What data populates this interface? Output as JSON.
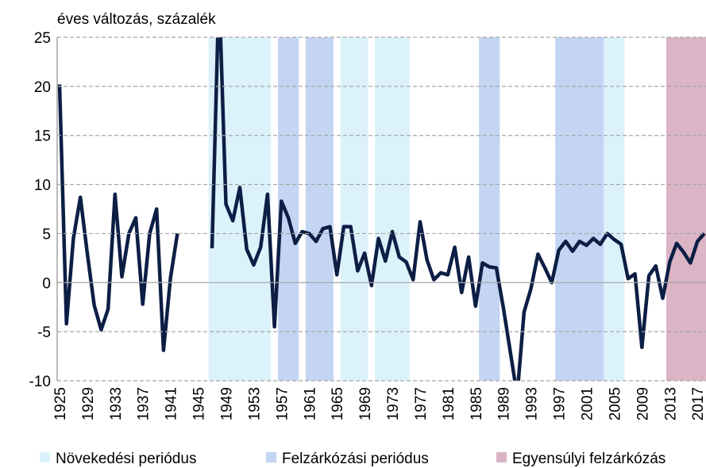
{
  "chart_data": {
    "type": "line",
    "y_label": "éves változás, százalék",
    "x": [
      1925,
      1926,
      1927,
      1928,
      1929,
      1930,
      1931,
      1932,
      1933,
      1934,
      1935,
      1936,
      1937,
      1938,
      1939,
      1940,
      1941,
      1942,
      1943,
      1944,
      1945,
      1946,
      1947,
      1948,
      1949,
      1950,
      1951,
      1952,
      1953,
      1954,
      1955,
      1956,
      1957,
      1958,
      1959,
      1960,
      1961,
      1962,
      1963,
      1964,
      1965,
      1966,
      1967,
      1968,
      1969,
      1970,
      1971,
      1972,
      1973,
      1974,
      1975,
      1976,
      1977,
      1978,
      1979,
      1980,
      1981,
      1982,
      1983,
      1984,
      1985,
      1986,
      1987,
      1988,
      1989,
      1990,
      1991,
      1992,
      1993,
      1994,
      1995,
      1996,
      1997,
      1998,
      1999,
      2000,
      2001,
      2002,
      2003,
      2004,
      2005,
      2006,
      2007,
      2008,
      2009,
      2010,
      2011,
      2012,
      2013,
      2014,
      2015,
      2016,
      2017,
      2018
    ],
    "series": [
      {
        "name": "GDP",
        "color": "#0d1e45",
        "values": [
          20.2,
          -4.2,
          4.5,
          8.7,
          3,
          -2.3,
          -4.8,
          -2.7,
          9,
          0.6,
          5,
          6.6,
          -2.2,
          5,
          7.5,
          -6.9,
          0.5,
          5,
          null,
          null,
          null,
          null,
          3.5,
          30,
          8,
          6.3,
          9.7,
          3.4,
          1.8,
          3.6,
          9,
          -4.5,
          8.3,
          6.6,
          4,
          5.2,
          5,
          4.2,
          5.5,
          5.7,
          0.8,
          5.7,
          5.7,
          1.2,
          3,
          -0.3,
          4.5,
          2.2,
          5.2,
          2.6,
          2.1,
          0.3,
          6.2,
          2.3,
          0.3,
          1,
          0.8,
          3.6,
          -1,
          2.6,
          -2.4,
          2,
          1.6,
          1.5,
          -2.5,
          -7,
          -11.5,
          -3,
          -0.6,
          2.9,
          1.5,
          0,
          3.3,
          4.2,
          3.2,
          4.2,
          3.8,
          4.5,
          3.9,
          5,
          4.4,
          3.9,
          0.4,
          0.9,
          -6.6,
          0.7,
          1.7,
          -1.6,
          2.1,
          4,
          3.1,
          2,
          4.2,
          5
        ]
      }
    ],
    "periods": [
      {
        "name": "Növekedési periódus",
        "color": "#dcf2fb",
        "ranges": [
          [
            1947,
            1955
          ],
          [
            1966,
            1969
          ],
          [
            1971,
            1975
          ],
          [
            2004,
            2006
          ]
        ]
      },
      {
        "name": "Felzárkózási periódus",
        "color": "#c3d5f3",
        "ranges": [
          [
            1957,
            1959
          ],
          [
            1961,
            1964
          ],
          [
            1986,
            1988
          ],
          [
            1997,
            2003
          ]
        ]
      },
      {
        "name": "Egyensúlyi felzárkózás",
        "color": "#dbb4c6",
        "ranges": [
          [
            2013,
            2018
          ]
        ]
      }
    ],
    "xlim": [
      1924.66,
      2018.24
    ],
    "xticks": [
      1925,
      1929,
      1933,
      1937,
      1941,
      1945,
      1949,
      1953,
      1957,
      1961,
      1965,
      1969,
      1973,
      1977,
      1981,
      1985,
      1989,
      1993,
      1997,
      2001,
      2005,
      2009,
      2013,
      2017
    ],
    "ylim": [
      -10,
      25
    ],
    "yticks": [
      -10,
      -5,
      0,
      5,
      10,
      15,
      20,
      25
    ],
    "grid": true
  }
}
